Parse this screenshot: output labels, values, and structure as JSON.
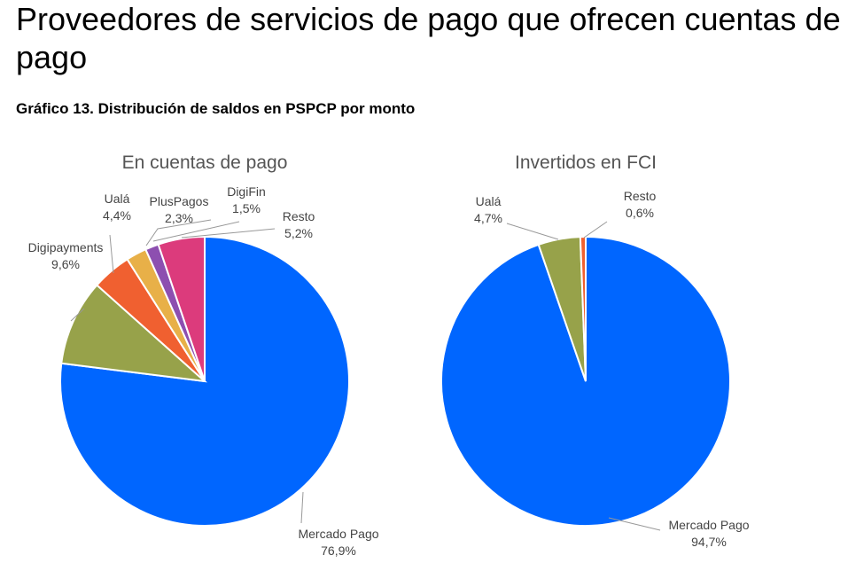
{
  "page": {
    "title": "Proveedores de servicios de pago que ofrecen cuentas de pago",
    "caption": "Gráfico 13. Distribución de saldos en PSPCP por monto"
  },
  "chart_data": [
    {
      "type": "pie",
      "title": "En cuentas de pago",
      "start": "12 o'clock, clockwise",
      "slices": [
        {
          "name": "Mercado Pago",
          "value": 76.9,
          "label": "76,9%",
          "color": "#0066ff"
        },
        {
          "name": "Digipayments",
          "value": 9.6,
          "label": "9,6%",
          "color": "#97a24a"
        },
        {
          "name": "Ualá",
          "value": 4.4,
          "label": "4,4%",
          "color": "#f06030"
        },
        {
          "name": "PlusPagos",
          "value": 2.3,
          "label": "2,3%",
          "color": "#e8b048"
        },
        {
          "name": "DigiFin",
          "value": 1.5,
          "label": "1,5%",
          "color": "#8d4fb0"
        },
        {
          "name": "Resto",
          "value": 5.2,
          "label": "5,2%",
          "color": "#dc3b7c"
        }
      ]
    },
    {
      "type": "pie",
      "title": "Invertidos en FCI",
      "start": "12 o'clock, clockwise",
      "slices": [
        {
          "name": "Mercado Pago",
          "value": 94.7,
          "label": "94,7%",
          "color": "#0066ff"
        },
        {
          "name": "Ualá",
          "value": 4.7,
          "label": "4,7%",
          "color": "#97a24a"
        },
        {
          "name": "Resto",
          "value": 0.6,
          "label": "0,6%",
          "color": "#f06030"
        }
      ]
    }
  ]
}
